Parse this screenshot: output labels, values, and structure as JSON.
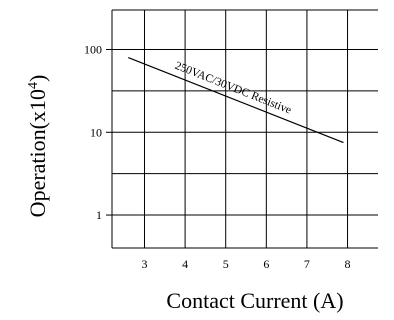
{
  "chart_data": {
    "type": "line",
    "xlabel": "Contact Current (A)",
    "ylabel": "Operation(x10",
    "ylabel_superscript": "4",
    "ylabel_close": ")",
    "x_ticks": [
      "3",
      "4",
      "5",
      "6",
      "7",
      "8"
    ],
    "y_ticks": [
      "1",
      "10",
      "100"
    ],
    "y_scale": "log",
    "xlim": [
      2.2,
      8.75
    ],
    "ylim": [
      0.4,
      300
    ],
    "grid": true,
    "series": [
      {
        "name": "250VAC/30VDC Resistive",
        "x": [
          2.6,
          7.9
        ],
        "y": [
          80,
          7.5
        ]
      }
    ],
    "annotation": "250VAC/30VDC Resistive"
  }
}
